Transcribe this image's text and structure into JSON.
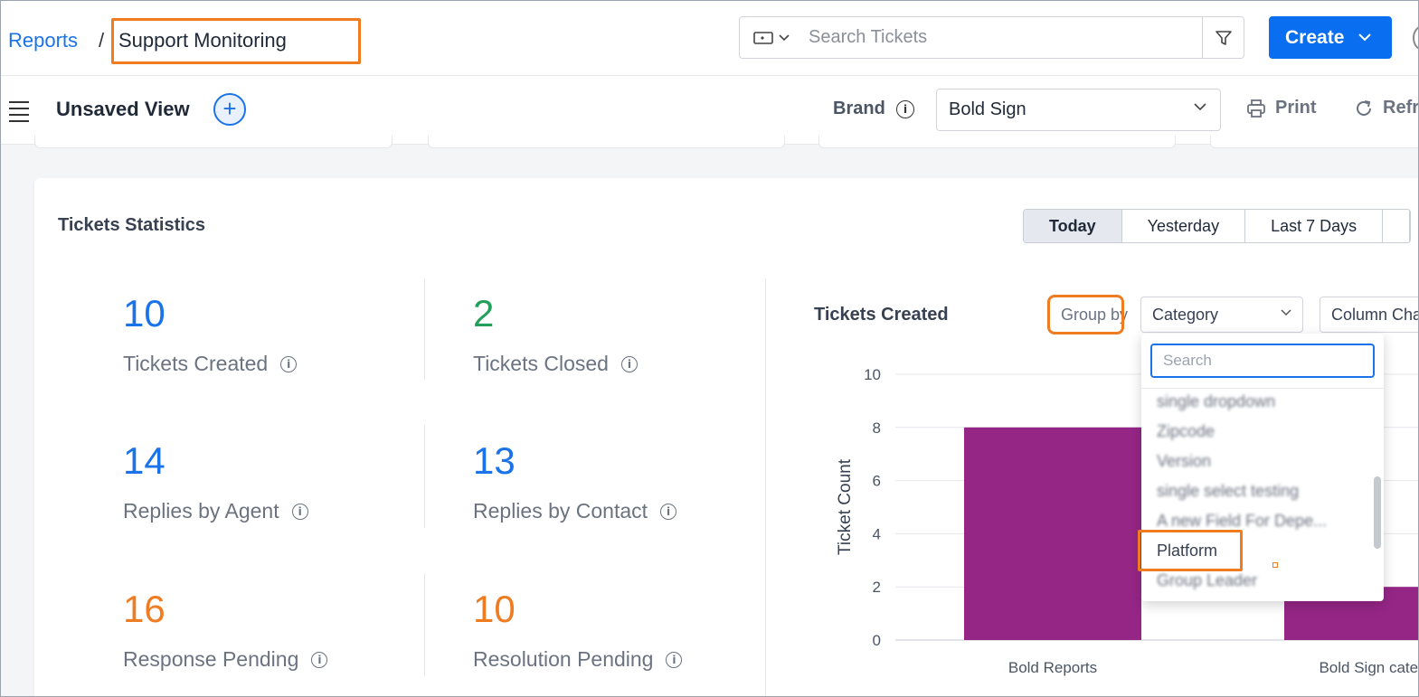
{
  "header": {
    "breadcrumb_root": "Reports",
    "breadcrumb_sep": "/",
    "breadcrumb_current": "Support Monitoring",
    "search_placeholder": "Search Tickets",
    "create_label": "Create",
    "icons": [
      "ticket-icon",
      "chevron-down-icon",
      "filter-icon",
      "chevron-down-icon"
    ]
  },
  "viewbar": {
    "view_title": "Unsaved View",
    "brand_label": "Brand",
    "brand_value": "Bold Sign",
    "print_label": "Print",
    "refresh_label": "Refr"
  },
  "stats": {
    "title": "Tickets Statistics",
    "ranges": [
      "Today",
      "Yesterday",
      "Last 7 Days"
    ],
    "active_range": "Today",
    "items": [
      {
        "value": "10",
        "label": "Tickets Created",
        "color": "#1a73e8"
      },
      {
        "value": "2",
        "label": "Tickets Closed",
        "color": "#22a05a"
      },
      {
        "value": "14",
        "label": "Replies by Agent",
        "color": "#1a73e8"
      },
      {
        "value": "13",
        "label": "Replies by Contact",
        "color": "#1a73e8"
      },
      {
        "value": "16",
        "label": "Response Pending",
        "color": "#f07c22"
      },
      {
        "value": "10",
        "label": "Resolution Pending",
        "color": "#f07c22"
      }
    ]
  },
  "chart_panel": {
    "title": "Tickets Created",
    "group_by_label": "Group by",
    "group_by_value": "Category",
    "chart_type_value": "Column Cha",
    "dropdown": {
      "search_placeholder": "Search",
      "items": [
        "single dropdown",
        "Zipcode",
        "Version",
        "single select testing",
        "A new Field For Depe...",
        "Platform",
        "Group Leader"
      ],
      "highlighted": "Platform"
    }
  },
  "chart_data": {
    "type": "bar",
    "categories": [
      "Bold Reports",
      "Bold Sign categ"
    ],
    "values": [
      8,
      2
    ],
    "ylabel": "Ticket Count",
    "ylim": [
      0,
      10
    ],
    "yticks": [
      "0",
      "2",
      "4",
      "6",
      "8",
      "10"
    ],
    "bar_color": "#952686",
    "grid": true
  }
}
